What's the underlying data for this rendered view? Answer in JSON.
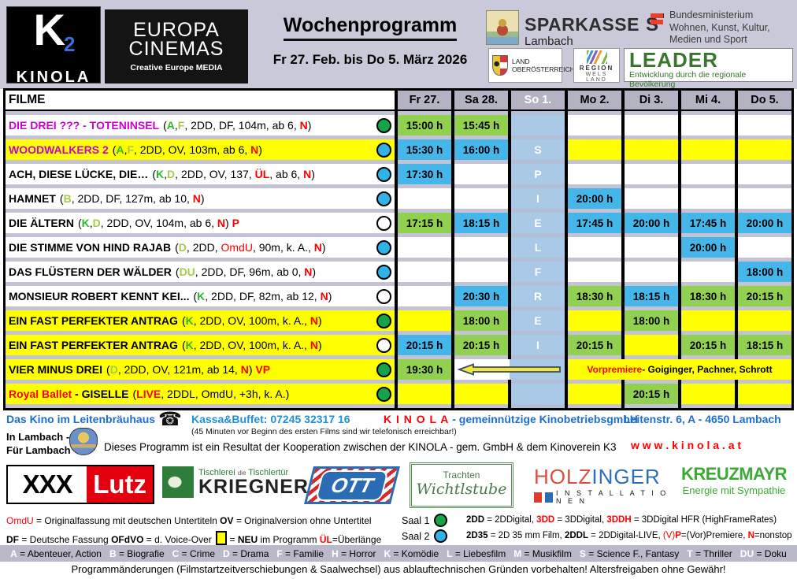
{
  "header": {
    "kinola_logo": {
      "k": "K",
      "two": "2",
      "name": "KINOLA"
    },
    "europa_cinemas": {
      "line1": "EUROPA",
      "line2": "CINEMAS",
      "sub": "Creative Europe MEDIA"
    },
    "title": "Wochenprogramm",
    "date_range": "Fr 27. Feb. bis Do 5. März 2026",
    "sparkasse": {
      "name": "SPARKASSE",
      "symbol": "S",
      "sub": "Lambach"
    },
    "ministry": {
      "line1": "Bundesministerium",
      "line2": "Wohnen, Kunst, Kultur,",
      "line3": "Medien und Sport"
    },
    "land": {
      "line1": "LAND",
      "line2": "OBERÖSTERREICH"
    },
    "region": {
      "line1": "REGION",
      "line2": "WELS LAND"
    },
    "leader": {
      "name": "LEADER",
      "sub": "Entwicklung durch die regionale Bevölkerung"
    }
  },
  "colors": {
    "saal1_green": "#17a34a",
    "saal2_blue": "#2fb3e8",
    "time_green": "#92d050",
    "time_blue": "#45b6ea",
    "highlight_yellow": "#ffff00",
    "closed_column_blue": "#a9c9e6",
    "title_magenta": "#cc00cc",
    "accent_red": "#ff0000"
  },
  "table": {
    "filme_header": "FILME",
    "days": [
      "Fr 27.",
      "Sa 28.",
      "So 1.",
      "Mo 2.",
      "Di 3.",
      "Mi 4.",
      "Do 5."
    ],
    "spielfrei_letters": [
      "",
      "S",
      "P",
      "I",
      "E",
      "L",
      "F",
      "R",
      "E",
      "I",
      "",
      ""
    ],
    "rows": [
      {
        "title": [
          {
            "t": "DIE DREI ??? - TOTENINSEL",
            "c": "m"
          }
        ],
        "info": [
          {
            "t": "("
          },
          {
            "t": "A",
            "c": "g",
            "b": 1
          },
          {
            "t": ","
          },
          {
            "t": "F",
            "c": "lg",
            "b": 1
          },
          {
            "t": ", 2DD, DF, 104m, ab 6, "
          },
          {
            "t": "N",
            "c": "r",
            "b": 1
          },
          {
            "t": ")"
          }
        ],
        "bg": "white",
        "circle": "green",
        "times": [
          {
            "t": "15:00 h",
            "bg": "g"
          },
          {
            "t": "15:45 h",
            "bg": "g"
          },
          null,
          null,
          null,
          null,
          null
        ]
      },
      {
        "title": [
          {
            "t": "WOODWALKERS 2",
            "c": "m"
          }
        ],
        "info": [
          {
            "t": "("
          },
          {
            "t": "A",
            "c": "g",
            "b": 1
          },
          {
            "t": ","
          },
          {
            "t": "F",
            "c": "lg",
            "b": 1
          },
          {
            "t": ", 2DD, OV, 103m, ab 6, "
          },
          {
            "t": "N",
            "c": "r",
            "b": 1
          },
          {
            "t": ")"
          }
        ],
        "bg": "yellow",
        "circle": "blue",
        "times": [
          {
            "t": "15:30 h",
            "bg": "b"
          },
          {
            "t": "16:00 h",
            "bg": "b"
          },
          null,
          null,
          null,
          null,
          null
        ]
      },
      {
        "title": [
          {
            "t": "ACH, DIESE LÜCKE, DIE…"
          }
        ],
        "info": [
          {
            "t": "("
          },
          {
            "t": "K",
            "c": "g",
            "b": 1
          },
          {
            "t": ","
          },
          {
            "t": "D",
            "c": "lg",
            "b": 1
          },
          {
            "t": ", 2DD, OV, 137, "
          },
          {
            "t": "ÜL",
            "c": "r",
            "b": 1
          },
          {
            "t": ", ab 6, "
          },
          {
            "t": "N",
            "c": "r",
            "b": 1
          },
          {
            "t": ")"
          }
        ],
        "bg": "white",
        "circle": "blue",
        "times": [
          {
            "t": "17:30 h",
            "bg": "b"
          },
          null,
          null,
          null,
          null,
          null,
          null
        ]
      },
      {
        "title": [
          {
            "t": "HAMNET"
          }
        ],
        "info": [
          {
            "t": "("
          },
          {
            "t": "B",
            "c": "lg",
            "b": 1
          },
          {
            "t": ", 2DD, DF, 127m, ab 10, "
          },
          {
            "t": "N",
            "c": "r",
            "b": 1
          },
          {
            "t": ")"
          }
        ],
        "bg": "white",
        "circle": "blue",
        "times": [
          null,
          null,
          null,
          {
            "t": "20:00 h",
            "bg": "b"
          },
          null,
          null,
          null
        ]
      },
      {
        "title": [
          {
            "t": "DIE ÄLTERN"
          }
        ],
        "info": [
          {
            "t": "("
          },
          {
            "t": "K",
            "c": "g",
            "b": 1
          },
          {
            "t": ","
          },
          {
            "t": "D",
            "c": "lg",
            "b": 1
          },
          {
            "t": ", 2DD, OV, 104m, ab 6, "
          },
          {
            "t": "N",
            "c": "r",
            "b": 1
          },
          {
            "t": ") "
          },
          {
            "t": "P",
            "c": "r",
            "b": 1
          }
        ],
        "bg": "white",
        "circle": "white",
        "times": [
          {
            "t": "17:15 h",
            "bg": "g"
          },
          {
            "t": "18:15 h",
            "bg": "b"
          },
          null,
          {
            "t": "17:45 h",
            "bg": "b"
          },
          {
            "t": "20:00 h",
            "bg": "b"
          },
          {
            "t": "17:45 h",
            "bg": "b"
          },
          {
            "t": "20:00 h",
            "bg": "b"
          }
        ]
      },
      {
        "title": [
          {
            "t": "DIE STIMME VON HIND RAJAB"
          }
        ],
        "info": [
          {
            "t": "("
          },
          {
            "t": "D",
            "c": "lg",
            "b": 1
          },
          {
            "t": ", 2DD, "
          },
          {
            "t": "OmdU",
            "c": "r"
          },
          {
            "t": ", 90m, k. A., "
          },
          {
            "t": "N",
            "c": "r",
            "b": 1
          },
          {
            "t": ")"
          }
        ],
        "bg": "white",
        "circle": "blue",
        "times": [
          null,
          null,
          null,
          null,
          null,
          {
            "t": "20:00 h",
            "bg": "b"
          },
          null
        ]
      },
      {
        "title": [
          {
            "t": "DAS FLÜSTERN DER WÄLDER"
          }
        ],
        "info": [
          {
            "t": "("
          },
          {
            "t": "DU",
            "c": "lg",
            "b": 1
          },
          {
            "t": ", 2DD, DF, 96m, ab 0, "
          },
          {
            "t": "N",
            "c": "r",
            "b": 1
          },
          {
            "t": ")"
          }
        ],
        "bg": "white",
        "circle": "blue",
        "times": [
          null,
          null,
          null,
          null,
          null,
          null,
          {
            "t": "18:00 h",
            "bg": "b"
          }
        ]
      },
      {
        "title": [
          {
            "t": "MONSIEUR ROBERT KENNT KEI..."
          }
        ],
        "info": [
          {
            "t": "("
          },
          {
            "t": "K",
            "c": "g",
            "b": 1
          },
          {
            "t": ", 2DD, DF, 82m, ab 12, "
          },
          {
            "t": "N",
            "c": "r",
            "b": 1
          },
          {
            "t": ")"
          }
        ],
        "bg": "white",
        "circle": "white",
        "times": [
          null,
          {
            "t": "20:30 h",
            "bg": "b"
          },
          null,
          {
            "t": "18:30 h",
            "bg": "g"
          },
          {
            "t": "18:15 h",
            "bg": "b"
          },
          {
            "t": "18:30 h",
            "bg": "g"
          },
          {
            "t": "20:15 h",
            "bg": "g"
          }
        ]
      },
      {
        "title": [
          {
            "t": "EIN FAST PERFEKTER ANTRAG"
          }
        ],
        "info": [
          {
            "t": "("
          },
          {
            "t": "K",
            "c": "g",
            "b": 1
          },
          {
            "t": ", 2DD, OV, 100m, k. A., "
          },
          {
            "t": "N",
            "c": "r",
            "b": 1
          },
          {
            "t": ")"
          }
        ],
        "bg": "yellow",
        "circle": "green",
        "times": [
          null,
          {
            "t": "18:00 h",
            "bg": "g"
          },
          null,
          null,
          {
            "t": "18:00 h",
            "bg": "g"
          },
          null,
          null
        ]
      },
      {
        "title": [
          {
            "t": "EIN FAST PERFEKTER ANTRAG"
          }
        ],
        "info": [
          {
            "t": "("
          },
          {
            "t": "K",
            "c": "g",
            "b": 1
          },
          {
            "t": ", 2DD, OV, 100m, k. A., "
          },
          {
            "t": "N",
            "c": "r",
            "b": 1
          },
          {
            "t": ")"
          }
        ],
        "bg": "yellow",
        "circle": "white",
        "times": [
          {
            "t": "20:15 h",
            "bg": "b"
          },
          {
            "t": "20:15 h",
            "bg": "g"
          },
          null,
          {
            "t": "20:15 h",
            "bg": "g"
          },
          null,
          {
            "t": "20:15 h",
            "bg": "g"
          },
          {
            "t": "18:15 h",
            "bg": "g"
          }
        ]
      },
      {
        "title": [
          {
            "t": "VIER MINUS DREI"
          }
        ],
        "info": [
          {
            "t": "("
          },
          {
            "t": "D",
            "c": "lg",
            "b": 1
          },
          {
            "t": ", 2DD, OV, 121m, ab 14, "
          },
          {
            "t": "N",
            "c": "r",
            "b": 1
          },
          {
            "t": ") "
          },
          {
            "t": "VP",
            "c": "r",
            "b": 1
          }
        ],
        "bg": "yellow",
        "circle": "green",
        "special": "vorpremiere",
        "times": [
          {
            "t": "19:30 h",
            "bg": "g"
          },
          null,
          null,
          null,
          null,
          null,
          null
        ],
        "note": [
          {
            "t": "Vorpremiere",
            "c": "r",
            "b": 1
          },
          {
            "t": " - Goiginger, Pachner, Schrott",
            "b": 1
          }
        ]
      },
      {
        "title": [
          {
            "t": "Royal Ballet",
            "c": "r"
          },
          {
            "t": " - GISELLE"
          }
        ],
        "info": [
          {
            "t": "("
          },
          {
            "t": "LIVE",
            "c": "r",
            "b": 1
          },
          {
            "t": ", 2DDL, OmdU, +3h, k. A.)"
          }
        ],
        "bg": "yellow",
        "circle": "green",
        "times": [
          null,
          null,
          null,
          null,
          {
            "t": "20:15 h",
            "bg": "g"
          },
          null,
          null
        ]
      }
    ]
  },
  "footer": {
    "venue": "Das Kino im Leitenbräuhaus",
    "phone_icon": "☎",
    "kassa": "Kassa&Buffet: 07245 32317 16",
    "kassa_note": "(45 Minuten vor Beginn des ersten Films sind wir telefonisch erreichbar!)",
    "kinola_name": "K I N O L A",
    "kinola_rest": "- gemeinnützige KinobetriebsgmbH",
    "address": "Leitenstr. 6,  A - 4650 Lambach",
    "slogan1": "In Lambach -",
    "slogan2": "Für Lambach",
    "coop": "Dieses Programm ist ein Resultat der Kooperation zwischen der KINOLA - gem. GmbH & dem Kinoverein K3",
    "website": "w w w . k i n o l a . a t"
  },
  "sponsors": {
    "xxxlutz": {
      "xxx": "XXX",
      "lutz": "Lutz"
    },
    "kriegner": {
      "top": "Tischlerei",
      "mid": "die",
      "top2": "Tischlertür",
      "name": "KRIEGNER"
    },
    "ott": "OTT",
    "wichtlstube": {
      "line1": "Trachten",
      "line2": "Wichtlstube"
    },
    "holzinger": {
      "p1": "HOLZ",
      "p2": "INGER",
      "sub": "I N S T A L L A T I O N E N"
    },
    "kreuzmayr": {
      "name": "KREUZMAYR",
      "sub": "Energie mit Sympathie"
    }
  },
  "legend": {
    "line1": [
      {
        "t": "OmdU",
        "c": "r"
      },
      {
        "t": " = Originalfassung mit deutschen Untertiteln   "
      },
      {
        "t": "OV",
        "b": 1
      },
      {
        "t": " = Originalversion ohne Untertitel"
      }
    ],
    "line2a": [
      {
        "t": "DF",
        "b": 1
      },
      {
        "t": " = Deutsche Fassung   "
      },
      {
        "t": "OFdVO",
        "b": 1
      },
      {
        "t": " = d. Voice-Over  "
      }
    ],
    "line2b": [
      {
        "t": " = "
      },
      {
        "t": "NEU",
        "b": 1
      },
      {
        "t": " im Programm  "
      },
      {
        "t": "ÜL",
        "c": "r",
        "b": 1
      },
      {
        "t": "=Überlänge"
      }
    ],
    "saal1_label": "Saal 1",
    "saal2_label": "Saal 2",
    "saal1_segs": [
      {
        "t": "2DD",
        "b": 1
      },
      {
        "t": " = 2DDigital, "
      },
      {
        "t": "3DD",
        "c": "r",
        "b": 1
      },
      {
        "t": " = 3DDigital, "
      },
      {
        "t": "3DDH",
        "c": "r",
        "b": 1
      },
      {
        "t": " = 3DDigital HFR (HighFrameRates)"
      }
    ],
    "saal2_segs": [
      {
        "t": "2D35",
        "b": 1
      },
      {
        "t": " = 2D 35 mm Film, "
      },
      {
        "t": "2DDL",
        "b": 1
      },
      {
        "t": " = 2DDigital-LIVE, "
      },
      {
        "t": "(V)",
        "c": "r"
      },
      {
        "t": "P",
        "c": "r",
        "b": 1
      },
      {
        "t": "=(Vor)Premiere, "
      },
      {
        "t": "N",
        "c": "r",
        "b": 1
      },
      {
        "t": "=nonstop"
      }
    ],
    "genres": [
      {
        "k": "A",
        "v": "Abenteuer, Action"
      },
      {
        "k": "B",
        "v": "Biografie"
      },
      {
        "k": "C",
        "v": "Crime"
      },
      {
        "k": "D",
        "v": "Drama"
      },
      {
        "k": "F",
        "v": "Familie"
      },
      {
        "k": "H",
        "v": "Horror"
      },
      {
        "k": "K",
        "v": "Komödie"
      },
      {
        "k": "L",
        "v": "Liebesfilm"
      },
      {
        "k": "M",
        "v": "Musikfilm"
      },
      {
        "k": "S",
        "v": "Science F., Fantasy"
      },
      {
        "k": "T",
        "v": "Thriller"
      },
      {
        "k": "DU",
        "v": "Doku"
      }
    ],
    "bottom_note": "Programmänderungen (Filmstartzeitverschiebungen & Saalwechsel) aus ablauftechnischen Gründen vorbehalten! Altersfreigaben ohne Gewähr!"
  }
}
